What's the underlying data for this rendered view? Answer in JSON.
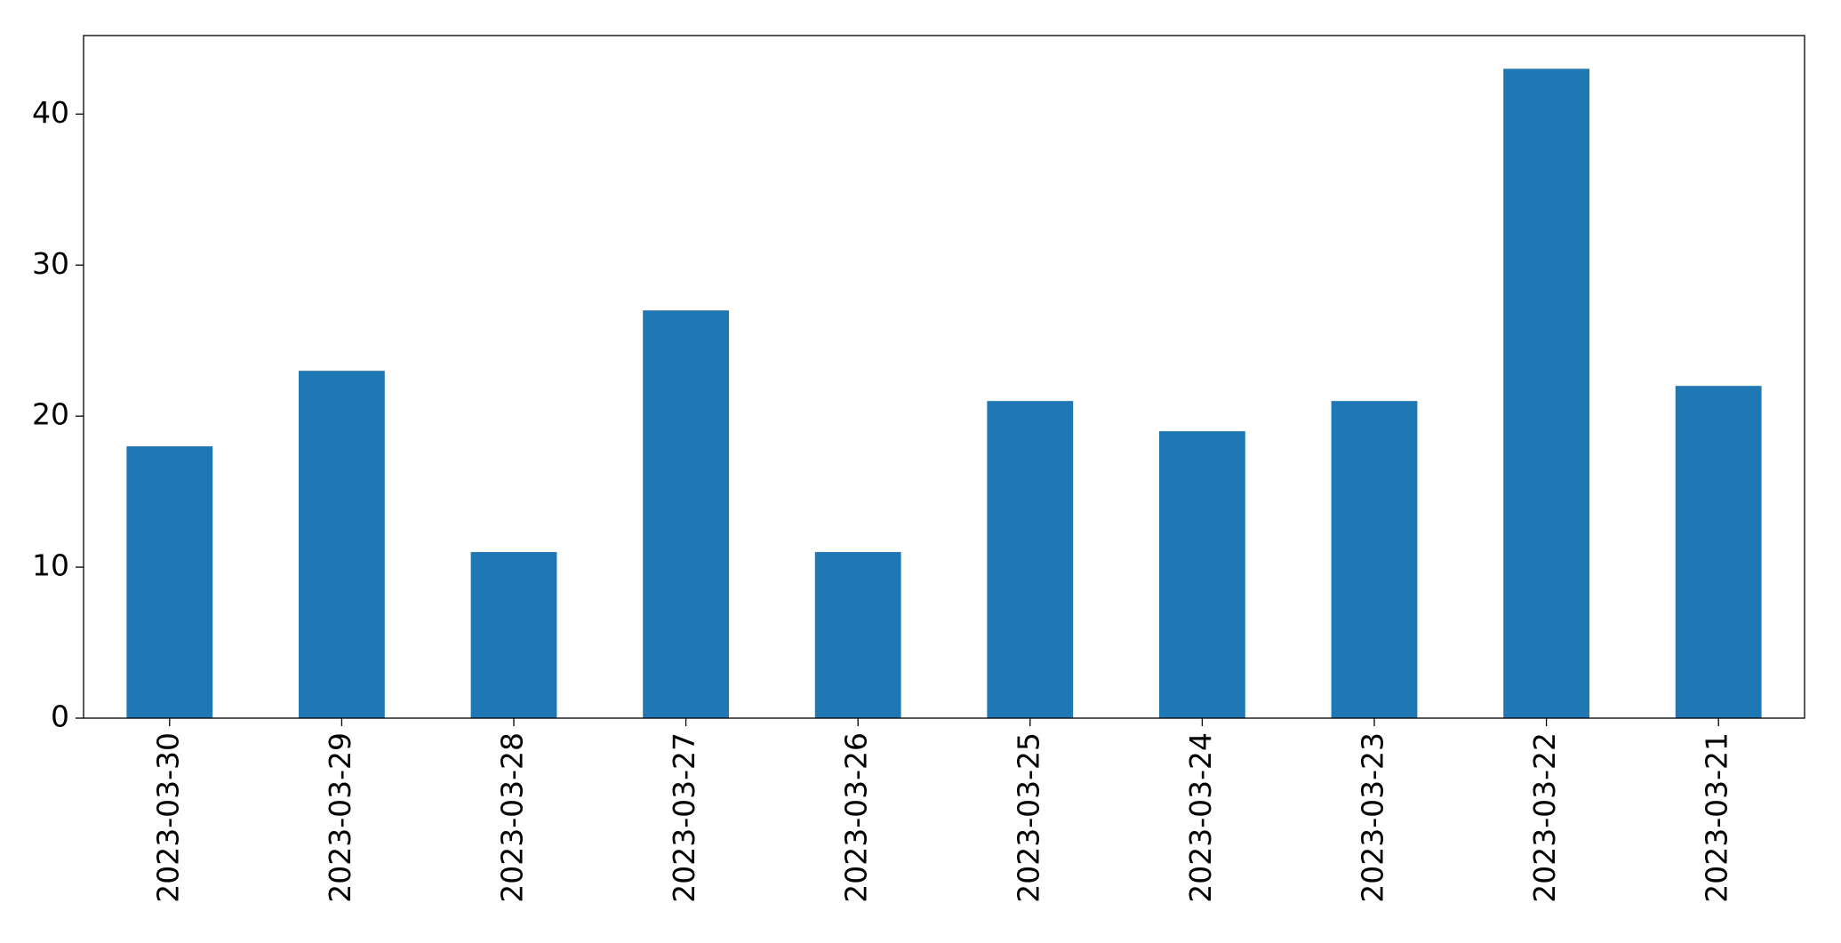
{
  "chart_data": {
    "type": "bar",
    "categories": [
      "2023-03-30",
      "2023-03-29",
      "2023-03-28",
      "2023-03-27",
      "2023-03-26",
      "2023-03-25",
      "2023-03-24",
      "2023-03-23",
      "2023-03-22",
      "2023-03-21"
    ],
    "values": [
      18,
      23,
      11,
      27,
      11,
      21,
      19,
      21,
      43,
      22
    ],
    "color": "#1f77b4",
    "ylim": [
      0,
      45.2
    ],
    "yticks": [
      0,
      10,
      20,
      30,
      40
    ],
    "grid": false
  }
}
